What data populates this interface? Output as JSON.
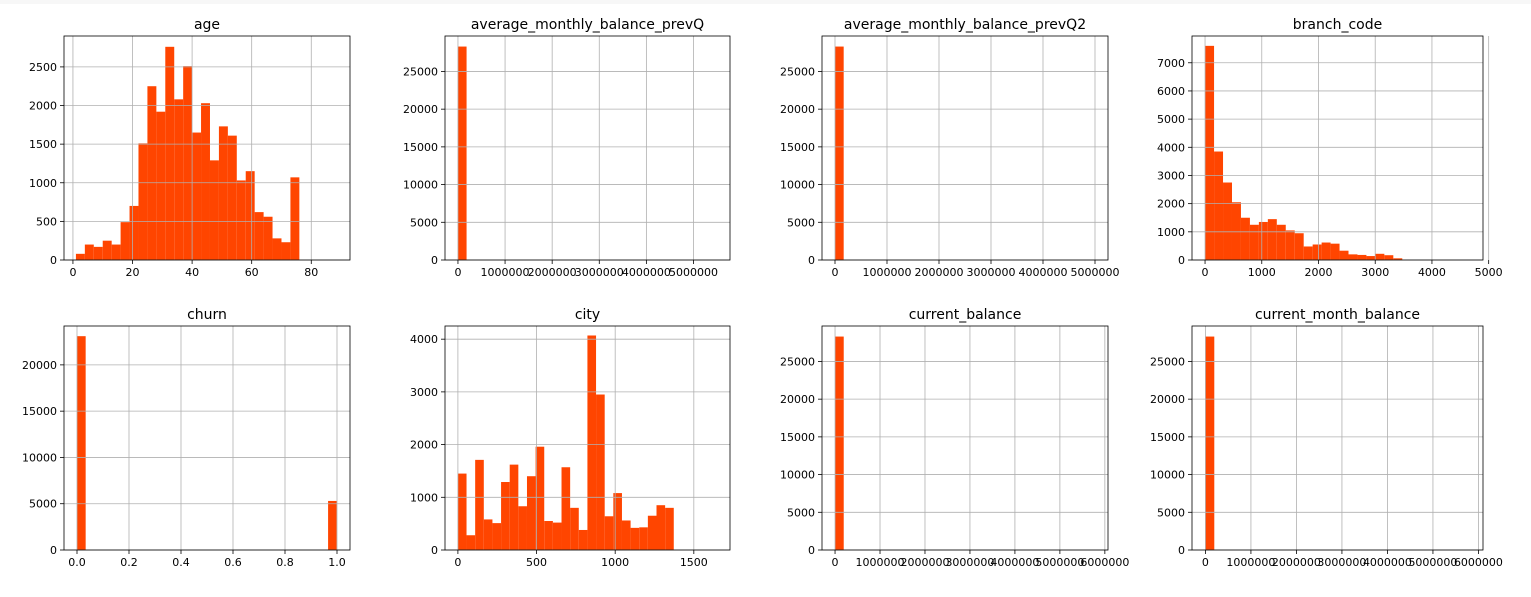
{
  "figure": {
    "bar_color": "#ff4500",
    "grid": true,
    "grid_color": "#b0b0b0"
  },
  "chart_data": [
    {
      "type": "bar",
      "title": "age",
      "xlabel": "",
      "ylabel": "",
      "xlim": [
        -3,
        93
      ],
      "ylim": [
        0,
        2900
      ],
      "x_ticks": [
        0,
        20,
        40,
        60,
        80
      ],
      "x_tick_labels": [
        "0",
        "20",
        "40",
        "60",
        "80"
      ],
      "y_ticks": [
        0,
        500,
        1000,
        1500,
        2000,
        2500
      ],
      "y_tick_labels": [
        "0",
        "500",
        "1000",
        "1500",
        "2000",
        "2500"
      ],
      "bin_start": 1,
      "bin_width": 3,
      "values": [
        80,
        200,
        170,
        250,
        200,
        490,
        700,
        1510,
        2250,
        1920,
        2760,
        2080,
        2510,
        1650,
        2030,
        1290,
        1730,
        1610,
        1030,
        1150,
        620,
        560,
        280,
        230,
        1070
      ]
    },
    {
      "type": "bar",
      "title": "average_monthly_balance_prevQ",
      "xlabel": "",
      "ylabel": "",
      "xlim": [
        -275000,
        5775000
      ],
      "ylim": [
        0,
        29700
      ],
      "x_ticks": [
        0,
        1000000,
        2000000,
        3000000,
        4000000,
        5000000
      ],
      "x_tick_labels": [
        "0",
        "1000000",
        "2000000",
        "3000000",
        "4000000",
        "5000000"
      ],
      "y_ticks": [
        0,
        5000,
        10000,
        15000,
        20000,
        25000
      ],
      "y_tick_labels": [
        "0",
        "5000",
        "10000",
        "15000",
        "20000",
        "25000"
      ],
      "bin_start": 0,
      "bin_width": 183000,
      "values": [
        28300,
        0,
        0,
        0,
        0,
        0,
        0,
        0,
        0,
        0,
        0,
        0,
        0,
        0,
        0,
        0,
        0,
        0,
        0,
        0,
        0,
        0,
        0,
        0,
        0,
        0,
        0,
        0,
        0,
        0
      ]
    },
    {
      "type": "bar",
      "title": "average_monthly_balance_prevQ2",
      "xlabel": "",
      "ylabel": "",
      "xlim": [
        -250000,
        5250000
      ],
      "ylim": [
        0,
        29700
      ],
      "x_ticks": [
        0,
        1000000,
        2000000,
        3000000,
        4000000,
        5000000
      ],
      "x_tick_labels": [
        "0",
        "1000000",
        "2000000",
        "3000000",
        "4000000",
        "5000000"
      ],
      "y_ticks": [
        0,
        5000,
        10000,
        15000,
        20000,
        25000
      ],
      "y_tick_labels": [
        "0",
        "5000",
        "10000",
        "15000",
        "20000",
        "25000"
      ],
      "bin_start": 0,
      "bin_width": 167000,
      "values": [
        28300,
        0,
        0,
        0,
        0,
        0,
        0,
        0,
        0,
        0,
        0,
        0,
        0,
        0,
        0,
        0,
        0,
        0,
        0,
        0,
        0,
        0,
        0,
        0,
        0,
        0,
        0,
        0,
        0,
        0
      ]
    },
    {
      "type": "bar",
      "title": "branch_code",
      "xlabel": "",
      "ylabel": "",
      "xlim": [
        -230,
        4900
      ],
      "ylim": [
        0,
        7950
      ],
      "x_ticks": [
        0,
        1000,
        2000,
        3000,
        4000,
        5000
      ],
      "x_tick_labels": [
        "0",
        "1000",
        "2000",
        "3000",
        "4000",
        "5000"
      ],
      "y_ticks": [
        0,
        1000,
        2000,
        3000,
        4000,
        5000,
        6000,
        7000
      ],
      "y_tick_labels": [
        "0",
        "1000",
        "2000",
        "3000",
        "4000",
        "5000",
        "6000",
        "7000"
      ],
      "bin_start": 1,
      "bin_width": 158,
      "values": [
        7600,
        3850,
        2750,
        2050,
        1500,
        1250,
        1350,
        1450,
        1250,
        1050,
        950,
        480,
        550,
        620,
        580,
        330,
        200,
        180,
        140,
        220,
        170,
        60,
        0,
        0,
        0,
        0,
        0,
        0,
        0,
        0
      ]
    },
    {
      "type": "bar",
      "title": "churn",
      "xlabel": "",
      "ylabel": "",
      "xlim": [
        -0.05,
        1.05
      ],
      "ylim": [
        0,
        24200
      ],
      "x_ticks": [
        0,
        0.2,
        0.4,
        0.6,
        0.8,
        1.0
      ],
      "x_tick_labels": [
        "0.0",
        "0.2",
        "0.4",
        "0.6",
        "0.8",
        "1.0"
      ],
      "y_ticks": [
        0,
        5000,
        10000,
        15000,
        20000
      ],
      "y_tick_labels": [
        "0",
        "5000",
        "10000",
        "15000",
        "20000"
      ],
      "bin_start": 0,
      "bin_width": 0.0333,
      "values": [
        23100,
        0,
        0,
        0,
        0,
        0,
        0,
        0,
        0,
        0,
        0,
        0,
        0,
        0,
        0,
        0,
        0,
        0,
        0,
        0,
        0,
        0,
        0,
        0,
        0,
        0,
        0,
        0,
        0,
        5300
      ]
    },
    {
      "type": "bar",
      "title": "city",
      "xlabel": "",
      "ylabel": "",
      "xlim": [
        -82,
        1730
      ],
      "ylim": [
        0,
        4250
      ],
      "x_ticks": [
        0,
        500,
        1000,
        1500
      ],
      "x_tick_labels": [
        "0",
        "500",
        "1000",
        "1500"
      ],
      "y_ticks": [
        0,
        1000,
        2000,
        3000,
        4000
      ],
      "y_tick_labels": [
        "0",
        "1000",
        "2000",
        "3000",
        "4000"
      ],
      "bin_start": 0,
      "bin_width": 54.9,
      "values": [
        1450,
        280,
        1710,
        580,
        510,
        1290,
        1620,
        830,
        1400,
        1960,
        550,
        520,
        1570,
        800,
        380,
        4070,
        2950,
        640,
        1080,
        560,
        420,
        430,
        650,
        850,
        800
      ]
    },
    {
      "type": "bar",
      "title": "current_balance",
      "xlabel": "",
      "ylabel": "",
      "xlim": [
        -290000,
        6070000
      ],
      "ylim": [
        0,
        29700
      ],
      "x_ticks": [
        0,
        1000000,
        2000000,
        3000000,
        4000000,
        5000000,
        6000000
      ],
      "x_tick_labels": [
        "0",
        "1000000",
        "2000000",
        "3000000",
        "4000000",
        "5000000",
        "6000000"
      ],
      "y_ticks": [
        0,
        5000,
        10000,
        15000,
        20000,
        25000
      ],
      "y_tick_labels": [
        "0",
        "5000",
        "10000",
        "15000",
        "20000",
        "25000"
      ],
      "bin_start": 0,
      "bin_width": 193000,
      "values": [
        28300,
        0,
        0,
        0,
        0,
        0,
        0,
        0,
        0,
        0,
        0,
        0,
        0,
        0,
        0,
        0,
        0,
        0,
        0,
        0,
        0,
        0,
        0,
        0,
        0,
        0,
        0,
        0,
        0,
        0
      ]
    },
    {
      "type": "bar",
      "title": "current_month_balance",
      "xlabel": "",
      "ylabel": "",
      "xlim": [
        -295000,
        6100000
      ],
      "ylim": [
        0,
        29700
      ],
      "x_ticks": [
        0,
        1000000,
        2000000,
        3000000,
        4000000,
        5000000,
        6000000
      ],
      "x_tick_labels": [
        "0",
        "1000000",
        "2000000",
        "3000000",
        "4000000",
        "5000000",
        "6000000"
      ],
      "y_ticks": [
        0,
        5000,
        10000,
        15000,
        20000,
        25000
      ],
      "y_tick_labels": [
        "0",
        "5000",
        "10000",
        "15000",
        "20000",
        "25000"
      ],
      "bin_start": 0,
      "bin_width": 195000,
      "values": [
        28300,
        0,
        0,
        0,
        0,
        0,
        0,
        0,
        0,
        0,
        0,
        0,
        0,
        0,
        0,
        0,
        0,
        0,
        0,
        0,
        0,
        0,
        0,
        0,
        0,
        0,
        0,
        0,
        0,
        0
      ]
    }
  ]
}
